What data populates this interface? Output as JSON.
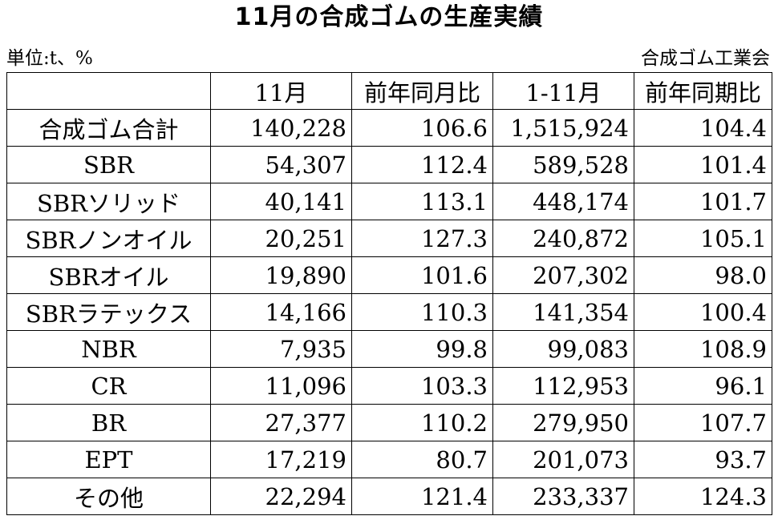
{
  "title": "11月の合成ゴムの生産実績",
  "unit_label": "単位:t、%",
  "source_label": "合成ゴム工業会",
  "table": {
    "headers": [
      "",
      "11月",
      "前年同月比",
      "1-11月",
      "前年同期比"
    ],
    "rows": [
      {
        "name": "合成ゴム合計",
        "month": "140,228",
        "month_yoy": "106.6",
        "ytd": "1,515,924",
        "ytd_yoy": "104.4"
      },
      {
        "name": "SBR",
        "month": "54,307",
        "month_yoy": "112.4",
        "ytd": "589,528",
        "ytd_yoy": "101.4"
      },
      {
        "name": "SBRソリッド",
        "month": "40,141",
        "month_yoy": "113.1",
        "ytd": "448,174",
        "ytd_yoy": "101.7"
      },
      {
        "name": "SBRノンオイル",
        "month": "20,251",
        "month_yoy": "127.3",
        "ytd": "240,872",
        "ytd_yoy": "105.1"
      },
      {
        "name": "SBRオイル",
        "month": "19,890",
        "month_yoy": "101.6",
        "ytd": "207,302",
        "ytd_yoy": "98.0"
      },
      {
        "name": "SBRラテックス",
        "month": "14,166",
        "month_yoy": "110.3",
        "ytd": "141,354",
        "ytd_yoy": "100.4"
      },
      {
        "name": "NBR",
        "month": "7,935",
        "month_yoy": "99.8",
        "ytd": "99,083",
        "ytd_yoy": "108.9"
      },
      {
        "name": "CR",
        "month": "11,096",
        "month_yoy": "103.3",
        "ytd": "112,953",
        "ytd_yoy": "96.1"
      },
      {
        "name": "BR",
        "month": "27,377",
        "month_yoy": "110.2",
        "ytd": "279,950",
        "ytd_yoy": "107.7"
      },
      {
        "name": "EPT",
        "month": "17,219",
        "month_yoy": "80.7",
        "ytd": "201,073",
        "ytd_yoy": "93.7"
      },
      {
        "name": "その他",
        "month": "22,294",
        "month_yoy": "121.4",
        "ytd": "233,337",
        "ytd_yoy": "124.3"
      }
    ]
  }
}
